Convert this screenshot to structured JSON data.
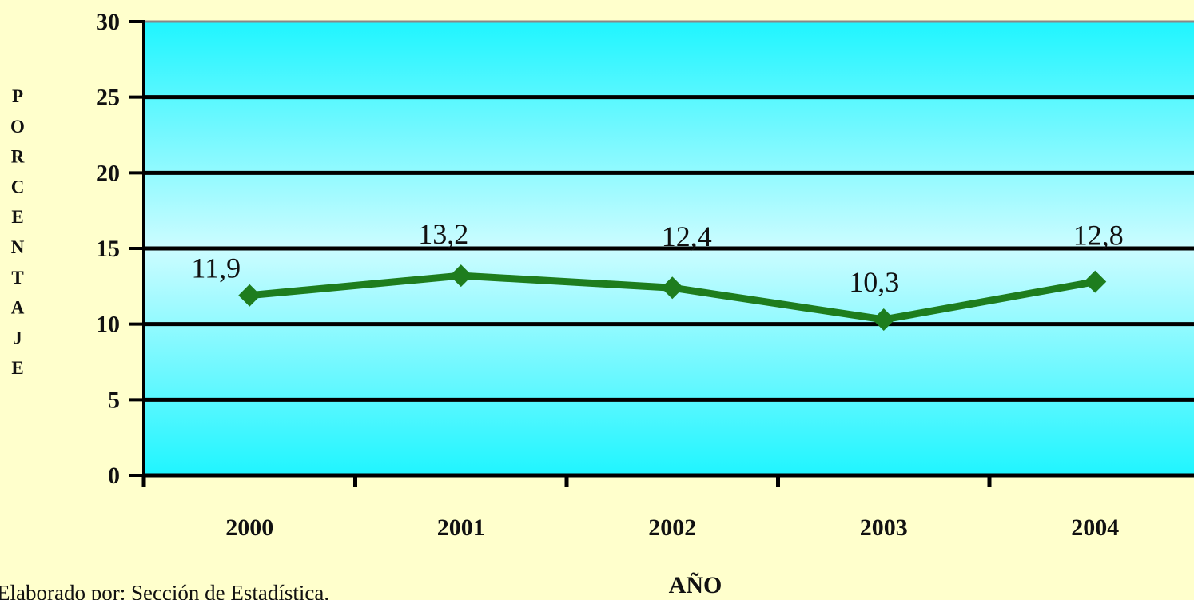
{
  "chart_data": {
    "type": "line",
    "categories": [
      "2000",
      "2001",
      "2002",
      "2003",
      "2004"
    ],
    "values": [
      11.9,
      13.2,
      12.4,
      10.3,
      12.8
    ],
    "data_labels": [
      "11,9",
      "13,2",
      "12,4",
      "10,3",
      "12,8"
    ],
    "ylabel": "PORCENTAJE",
    "xlabel": "AÑO",
    "ylim": [
      0,
      30
    ],
    "yticks": [
      "0",
      "5",
      "10",
      "15",
      "20",
      "25",
      "30"
    ],
    "grid": true,
    "legend": "none",
    "line_color": "#1e7d1e",
    "plot_background": [
      "#1ff5ff",
      "#ccfcff"
    ],
    "page_background": "#ffffcc"
  },
  "footnote": "Elaborado por: Sección de Estadística."
}
